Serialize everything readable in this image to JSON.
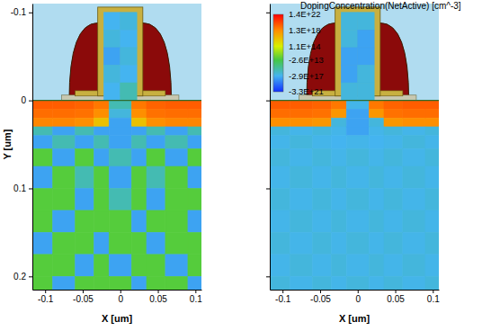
{
  "chart_data": [
    {
      "type": "heatmap",
      "xlabel": "X [um]",
      "ylabel": "Y [um]",
      "xlim": [
        -0.117,
        0.108
      ],
      "ylim": [
        -0.11,
        0.215
      ],
      "xticks": [
        -0.1,
        -0.05,
        0,
        0.05,
        0.1
      ],
      "yticks": [
        -0.1,
        0,
        0.1,
        0.2
      ],
      "cells": {
        "x_edges": [
          -0.117,
          -0.09,
          -0.06,
          -0.035,
          -0.015,
          0.015,
          0.035,
          0.06,
          0.09,
          0.108
        ],
        "y_edges": [
          0,
          0.01,
          0.02,
          0.03,
          0.04,
          0.055,
          0.075,
          0.1,
          0.125,
          0.15,
          0.175,
          0.2,
          0.215
        ],
        "values": [
          [
            3e+19,
            3e+19,
            2e+19,
            5e+18,
            -1e+16,
            5e+18,
            2e+19,
            3e+19,
            3e+19
          ],
          [
            1e+19,
            1e+19,
            8e+18,
            1e+18,
            -1e+17,
            1e+18,
            8e+18,
            1e+19,
            1e+19
          ],
          [
            2e+18,
            2e+18,
            1e+18,
            1e+16,
            -1e+18,
            1e+16,
            1e+18,
            2e+18,
            2e+18
          ],
          [
            -1e+16,
            -1e+18,
            -1e+16,
            -1e+18,
            -1e+18,
            -1e+18,
            -1e+16,
            -1e+18,
            -1e+16
          ],
          [
            -1e+18,
            -1e+16,
            -1e+18,
            -1e+16,
            -1e+18,
            -1e+16,
            -1e+18,
            -1e+16,
            -1e+18
          ],
          [
            -10000000000000.0,
            -1e+18,
            -10000000000000.0,
            -1e+18,
            -1e+16,
            -1e+18,
            -10000000000000.0,
            -1e+18,
            -10000000000000.0
          ],
          [
            -1e+18,
            -10000000000000.0,
            -1e+16,
            -10000000000000.0,
            -1e+18,
            -10000000000000.0,
            -1e+16,
            -10000000000000.0,
            -1e+18
          ],
          [
            -10000000000000.0,
            -10000000000000.0,
            -1e+18,
            -10000000000000.0,
            -1e+16,
            -10000000000000.0,
            -1e+18,
            -10000000000000.0,
            -10000000000000.0
          ],
          [
            -10000000000000.0,
            -1e+18,
            -10000000000000.0,
            -10000000000000.0,
            -10000000000000.0,
            -1e+18,
            -10000000000000.0,
            -10000000000000.0,
            -1e+18
          ],
          [
            -1e+18,
            -10000000000000.0,
            -10000000000000.0,
            -1e+18,
            -10000000000000.0,
            -10000000000000.0,
            -1e+18,
            -10000000000000.0,
            -10000000000000.0
          ],
          [
            -10000000000000.0,
            -10000000000000.0,
            -1e+18,
            -10000000000000.0,
            -1e+18,
            -10000000000000.0,
            -10000000000000.0,
            -1e+18,
            -10000000000000.0
          ],
          [
            -10000000000000.0,
            -1e+18,
            -10000000000000.0,
            -10000000000000.0,
            -10000000000000.0,
            -1e+18,
            -10000000000000.0,
            -10000000000000.0,
            -1e+18
          ]
        ]
      },
      "gate_cells": {
        "x_edges": [
          -0.022,
          0,
          0.022
        ],
        "y_edges": [
          -0.1,
          -0.08,
          -0.06,
          -0.04,
          -0.02,
          0
        ],
        "values": [
          [
            -3e+17,
            -1e+17
          ],
          [
            -1e+17,
            -3e+17
          ],
          [
            -1e+18,
            -1e+17
          ],
          [
            -1e+17,
            -3e+17
          ],
          [
            -3e+17,
            -1e+16
          ]
        ]
      }
    },
    {
      "type": "heatmap",
      "xlabel": "X [um]",
      "xlim": [
        -0.117,
        0.108
      ],
      "ylim": [
        -0.11,
        0.215
      ],
      "xticks": [
        -0.1,
        -0.05,
        0,
        0.05,
        0.1
      ],
      "yticks": [
        -0.1,
        0,
        0.1,
        0.2
      ],
      "tick_labels": "x",
      "cells": {
        "x_edges": [
          -0.117,
          -0.09,
          -0.06,
          -0.035,
          -0.015,
          0.015,
          0.035,
          0.06,
          0.09,
          0.108
        ],
        "y_edges": [
          0,
          0.01,
          0.02,
          0.03,
          0.04,
          0.055,
          0.075,
          0.1,
          0.125,
          0.15,
          0.175,
          0.2,
          0.215
        ],
        "values": [
          [
            3e+19,
            3e+19,
            2e+19,
            5e+18,
            -2e+17,
            5e+18,
            2e+19,
            3e+19,
            3e+19
          ],
          [
            1e+19,
            1e+19,
            8e+18,
            5e+17,
            -1e+18,
            5e+17,
            8e+18,
            1e+19,
            1e+19
          ],
          [
            1e+18,
            1e+18,
            5e+17,
            -1e+17,
            -1e+18,
            -1e+17,
            5e+17,
            1e+18,
            1e+18
          ],
          [
            -1e+17,
            -2e+17,
            -1e+17,
            -2e+17,
            -1e+18,
            -2e+17,
            -1e+17,
            -2e+17,
            -1e+17
          ],
          [
            -2e+17,
            -1e+17,
            -2e+17,
            -3e+17,
            -2e+17,
            -3e+17,
            -2e+17,
            -1e+17,
            -2e+17
          ],
          [
            -1e+17,
            -2e+17,
            -1e+17,
            -2e+17,
            -1e+17,
            -2e+17,
            -1e+17,
            -2e+17,
            -1e+17
          ],
          [
            -2e+17,
            -1e+17,
            -2e+17,
            -1e+17,
            -2e+17,
            -1e+17,
            -2e+17,
            -1e+17,
            -2e+17
          ],
          [
            -1e+17,
            -2e+17,
            -1e+17,
            -2e+17,
            -1e+17,
            -2e+17,
            -1e+17,
            -2e+17,
            -1e+17
          ],
          [
            -2e+17,
            -1e+17,
            -2e+17,
            -1e+17,
            -2e+17,
            -1e+17,
            -2e+17,
            -1e+17,
            -2e+17
          ],
          [
            -1e+17,
            -2e+17,
            -1e+17,
            -2e+17,
            -1e+17,
            -2e+17,
            -1e+17,
            -2e+17,
            -1e+17
          ],
          [
            -2e+17,
            -1e+17,
            -2e+17,
            -1e+17,
            -2e+17,
            -1e+17,
            -2e+17,
            -1e+17,
            -2e+17
          ],
          [
            -1e+17,
            -2e+17,
            -1e+17,
            -2e+17,
            -1e+17,
            -2e+17,
            -1e+17,
            -2e+17,
            -1e+17
          ]
        ]
      },
      "gate_cells": {
        "x_edges": [
          -0.022,
          0,
          0.022
        ],
        "y_edges": [
          -0.1,
          -0.08,
          -0.06,
          -0.04,
          -0.02,
          0
        ],
        "values": [
          [
            -1e+17,
            -1e+17
          ],
          [
            -1e+17,
            -1e+18
          ],
          [
            -1e+18,
            -1e+18
          ],
          [
            -1e+18,
            -1e+17
          ],
          [
            -1e+17,
            -1e+17
          ]
        ]
      },
      "colorbar": {
        "title": "DopingConcentration(NetActive) [cm^-3]",
        "range": [
          -3.3e+21,
          1.4e+22
        ],
        "ticks": [
          {
            "value": 1.4e+22,
            "label": "1.4E+22"
          },
          {
            "value": 1.3e+18,
            "label": "1.3E+18"
          },
          {
            "value": 110000000000000.0,
            "label": "1.1E+14"
          },
          {
            "value": -26000000000000.0,
            "label": "-2.6E+13"
          },
          {
            "value": -2.9e+17,
            "label": "-2.9E+17"
          },
          {
            "value": -3.3e+21,
            "label": "-3.3E+21"
          }
        ],
        "colors": [
          "#ff0000",
          "#ff8c00",
          "#d8f000",
          "#44c844",
          "#44b4f0",
          "#1030ff"
        ]
      }
    }
  ]
}
